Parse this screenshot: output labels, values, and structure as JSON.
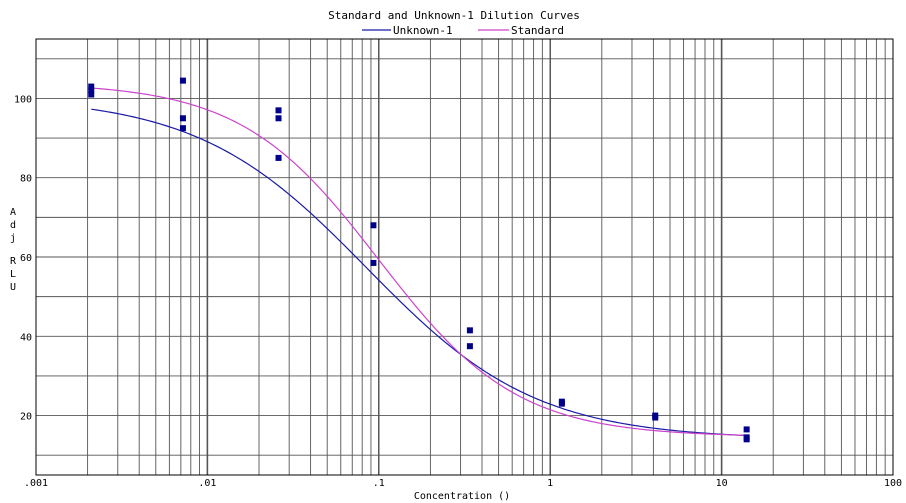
{
  "chart_data": {
    "type": "scatter",
    "title": "Standard and Unknown-1 Dilution Curves",
    "xlabel": "Concentration ()",
    "ylabel": "Adj RLU",
    "x_scale": "log",
    "xlim": [
      0.001,
      100
    ],
    "ylim": [
      5,
      115
    ],
    "x_tick_labels": [
      ".001",
      ".01",
      ".1",
      "1",
      "10",
      "100"
    ],
    "y_ticks": [
      20,
      40,
      60,
      80,
      100
    ],
    "grid": true,
    "legend_position": "top-center",
    "colors": {
      "Unknown-1": "#1a1aa6",
      "Standard": "#cc44cc",
      "points": "#00008b"
    },
    "series": [
      {
        "name": "Unknown-1",
        "kind": "fitted-curve",
        "curve": {
          "top": 100.5,
          "bottom": 14.0,
          "ec50": 0.085,
          "hill": 0.88
        }
      },
      {
        "name": "Standard",
        "kind": "fitted-curve",
        "curve": {
          "top": 104.0,
          "bottom": 14.6,
          "ec50": 0.1,
          "hill": 1.08
        }
      },
      {
        "name": "",
        "kind": "points",
        "points": [
          {
            "x": 0.0021,
            "y": 101
          },
          {
            "x": 0.0021,
            "y": 102
          },
          {
            "x": 0.0021,
            "y": 103
          },
          {
            "x": 0.0072,
            "y": 104.5
          },
          {
            "x": 0.0072,
            "y": 95
          },
          {
            "x": 0.0072,
            "y": 92.5
          },
          {
            "x": 0.026,
            "y": 97
          },
          {
            "x": 0.026,
            "y": 95
          },
          {
            "x": 0.026,
            "y": 85
          },
          {
            "x": 0.093,
            "y": 68
          },
          {
            "x": 0.093,
            "y": 58.5
          },
          {
            "x": 0.34,
            "y": 41.5
          },
          {
            "x": 0.34,
            "y": 37.5
          },
          {
            "x": 1.17,
            "y": 23.5
          },
          {
            "x": 1.17,
            "y": 23
          },
          {
            "x": 4.1,
            "y": 20
          },
          {
            "x": 4.1,
            "y": 19.5
          },
          {
            "x": 14.0,
            "y": 16.5
          },
          {
            "x": 14.0,
            "y": 14.5
          },
          {
            "x": 14.0,
            "y": 14
          }
        ]
      }
    ]
  }
}
